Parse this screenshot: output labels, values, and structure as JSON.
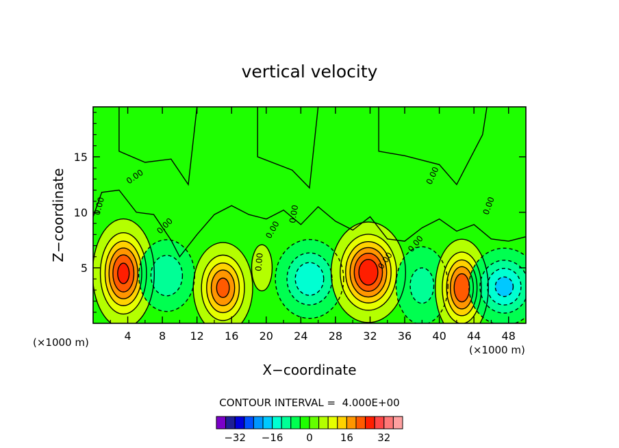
{
  "chart_data": {
    "type": "heatmap",
    "title": "vertical velocity",
    "xlabel": "X−coordinate",
    "ylabel": "Z−coordinate",
    "x_units": "(×1000 m)",
    "z_units": "(×1000 m)",
    "xlim": [
      0,
      50
    ],
    "ylim": [
      0,
      19.5
    ],
    "x_ticks": [
      "4",
      "8",
      "12",
      "16",
      "20",
      "24",
      "28",
      "32",
      "36",
      "40",
      "44",
      "48"
    ],
    "x_tick_values": [
      4,
      8,
      12,
      16,
      20,
      24,
      28,
      32,
      36,
      40,
      44,
      48
    ],
    "y_ticks": [
      "5",
      "10",
      "15"
    ],
    "y_tick_values": [
      5,
      10,
      15
    ],
    "contour_interval": "CONTOUR INTERVAL =  4.000E+00",
    "contour_labels": [
      "0.00",
      "0.00",
      "0.00",
      "0.00",
      "0.00",
      "0.00",
      "0.00",
      "0.00",
      "0.00",
      "0.00"
    ],
    "background_level": 0,
    "cells": [
      {
        "x": 3.5,
        "z": 4.5,
        "peak": 24,
        "sx": 1.6,
        "sz": 2.2
      },
      {
        "x": 8.5,
        "z": 4.3,
        "peak": -10,
        "sx": 1.8,
        "sz": 1.8
      },
      {
        "x": 15.0,
        "z": 3.2,
        "peak": 20,
        "sx": 1.6,
        "sz": 1.9
      },
      {
        "x": 19.5,
        "z": 5.0,
        "peak": 6,
        "sx": 0.8,
        "sz": 1.4
      },
      {
        "x": 25.0,
        "z": 4.0,
        "peak": -14,
        "sx": 2.0,
        "sz": 1.8
      },
      {
        "x": 31.8,
        "z": 4.6,
        "peak": 26,
        "sx": 1.9,
        "sz": 2.0
      },
      {
        "x": 38.0,
        "z": 3.4,
        "peak": -8,
        "sx": 1.8,
        "sz": 2.1
      },
      {
        "x": 42.6,
        "z": 3.2,
        "peak": 22,
        "sx": 1.4,
        "sz": 2.0
      },
      {
        "x": 47.5,
        "z": 3.3,
        "peak": -16,
        "sx": 2.0,
        "sz": 1.7
      }
    ],
    "colorbar": {
      "colors": [
        "#7a00c8",
        "#1e1e96",
        "#0000dc",
        "#0050ff",
        "#0096ff",
        "#00c8ff",
        "#00ffd2",
        "#00ff96",
        "#00ff50",
        "#1eff00",
        "#64ff00",
        "#b4ff00",
        "#e6ff00",
        "#ffd200",
        "#ff9600",
        "#ff5a00",
        "#ff1e00",
        "#ff4646",
        "#ff7878",
        "#ffa0a0"
      ],
      "tick_labels": [
        "−32",
        "−16",
        "0",
        "16",
        "32"
      ],
      "tick_values": [
        -32,
        -16,
        0,
        16,
        32
      ],
      "range": [
        -40,
        40
      ]
    }
  }
}
